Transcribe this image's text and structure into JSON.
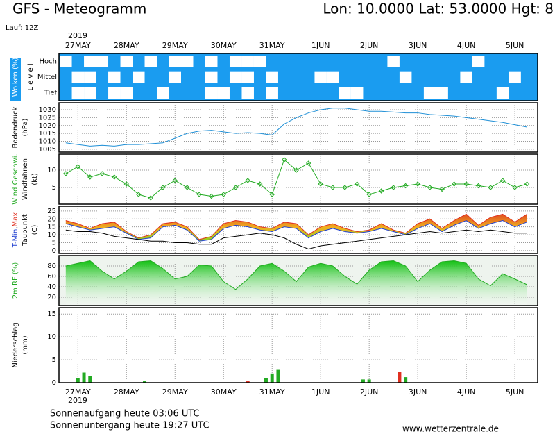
{
  "header": {
    "title": "GFS - Meteogramm",
    "location": "Lon: 10.0000 Lat: 53.0000 Hgt: 8",
    "run": "Lauf: 12Z",
    "year": "2019"
  },
  "time": {
    "xlim": [
      -0.39,
      9.47
    ],
    "xticks": [
      {
        "value": 0,
        "label": "27MAY"
      },
      {
        "value": 1,
        "label": "28MAY"
      },
      {
        "value": 2,
        "label": "29MAY"
      },
      {
        "value": 3,
        "label": "30MAY"
      },
      {
        "value": 4,
        "label": "31MAY"
      },
      {
        "value": 5,
        "label": "1JUN"
      },
      {
        "value": 6,
        "label": "2JUN"
      },
      {
        "value": 7,
        "label": "3JUN"
      },
      {
        "value": 8,
        "label": "4JUN"
      },
      {
        "value": 9,
        "label": "5JUN"
      }
    ],
    "x": [
      -0.25,
      0,
      0.25,
      0.5,
      0.75,
      1,
      1.25,
      1.5,
      1.75,
      2,
      2.25,
      2.5,
      2.75,
      3,
      3.25,
      3.5,
      3.75,
      4,
      4.25,
      4.5,
      4.75,
      5,
      5.25,
      5.5,
      5.75,
      6,
      6.25,
      6.5,
      6.75,
      7,
      7.25,
      7.5,
      7.75,
      8,
      8.25,
      8.5,
      8.75,
      9,
      9.25
    ]
  },
  "chart_data": [
    {
      "type": "heatmap",
      "axis_label": [
        "Wolken (%)",
        "L e v e l"
      ],
      "levels": [
        "Hoch",
        "Mittel",
        "Tief"
      ],
      "color": "#1a9cf0",
      "cloud_color": "#ffffff",
      "values": [
        [
          100,
          0,
          100,
          100,
          0,
          100,
          0,
          100,
          0,
          100,
          100,
          0,
          100,
          0,
          100,
          100,
          100,
          0,
          0,
          0,
          0,
          0,
          0,
          0,
          0,
          0,
          0,
          100,
          0,
          0,
          0,
          0,
          0,
          0,
          100,
          0,
          0,
          0,
          0
        ],
        [
          0,
          100,
          100,
          0,
          100,
          0,
          100,
          0,
          0,
          100,
          0,
          0,
          100,
          0,
          100,
          100,
          0,
          100,
          0,
          0,
          0,
          100,
          100,
          0,
          0,
          0,
          0,
          0,
          100,
          0,
          0,
          0,
          0,
          100,
          0,
          0,
          0,
          100,
          0
        ],
        [
          0,
          100,
          100,
          0,
          100,
          100,
          0,
          0,
          100,
          0,
          0,
          0,
          100,
          100,
          0,
          100,
          0,
          100,
          0,
          0,
          0,
          0,
          0,
          100,
          100,
          0,
          0,
          0,
          0,
          0,
          100,
          100,
          0,
          0,
          0,
          0,
          100,
          0,
          0
        ]
      ]
    },
    {
      "type": "line",
      "axis_label": [
        "Bodendruck",
        "(hPa)"
      ],
      "label_colors": [
        "#000000",
        "#000000"
      ],
      "ylim": [
        1003.2,
        1034.4
      ],
      "yticks": [
        1005,
        1010,
        1015,
        1020,
        1025,
        1030
      ],
      "grid": true,
      "series": [
        {
          "color": "#1e8fd6",
          "values": [
            1009,
            1008,
            1007,
            1007.5,
            1007,
            1008,
            1008,
            1008.5,
            1009,
            1012,
            1015,
            1016.5,
            1017,
            1016,
            1015,
            1015.5,
            1015,
            1014,
            1021,
            1025,
            1028,
            1030,
            1031,
            1031,
            1030,
            1029,
            1029,
            1028.5,
            1028,
            1028,
            1027,
            1026.5,
            1026,
            1025,
            1024,
            1023,
            1022,
            1020.5,
            1019
          ]
        }
      ]
    },
    {
      "type": "line",
      "axis_label": [
        "Wind Geschwi.",
        "Windfahnen",
        "(kt)"
      ],
      "label_colors": [
        "#22aa22",
        "#000000",
        "#000000"
      ],
      "ylim": [
        0.2,
        14.6
      ],
      "yticks": [
        5,
        10
      ],
      "grid": true,
      "marker": "diamond",
      "series": [
        {
          "color": "#22aa22",
          "values": [
            9,
            11,
            8,
            9,
            8,
            6,
            3,
            2,
            5,
            7,
            5,
            3,
            2.5,
            3,
            5,
            7,
            6,
            3,
            13,
            10,
            12,
            6,
            5,
            5,
            6,
            3,
            4,
            5,
            5.5,
            6,
            5,
            4.5,
            6,
            6,
            5.5,
            5,
            7,
            5,
            6
          ]
        }
      ]
    },
    {
      "type": "line",
      "axis_label": [
        "(C)"
      ],
      "label_separator": ",",
      "ylim": [
        -1.8,
        28
      ],
      "yticks": [
        0,
        5,
        10,
        15,
        20,
        25
      ],
      "grid": true,
      "fill": "#f0a020",
      "series": [
        {
          "name": "T-Min",
          "color": "#2040d0",
          "values": [
            17,
            15,
            13,
            14,
            15,
            11,
            7,
            8,
            15,
            16,
            13,
            6,
            7,
            14,
            16,
            15,
            13,
            12,
            15,
            14,
            8,
            12,
            14,
            12,
            11,
            12,
            14,
            12,
            10,
            14,
            17,
            12,
            16,
            19,
            14,
            17,
            19,
            15,
            18
          ]
        },
        {
          "name": "Max",
          "color": "#e03020",
          "values": [
            19,
            17,
            14,
            17,
            18,
            12,
            8,
            10,
            17,
            18,
            15,
            7,
            9,
            17,
            19,
            18,
            15,
            14,
            18,
            17,
            10,
            15,
            17,
            14,
            12,
            13,
            17,
            13,
            11,
            17,
            20,
            14,
            19,
            23,
            16,
            21,
            23,
            18,
            23
          ]
        },
        {
          "name": "Taupunkt",
          "color": "#000000",
          "values": [
            13,
            12,
            12,
            11,
            9,
            8,
            7,
            6,
            6,
            5,
            5,
            4,
            4,
            8,
            9,
            10,
            11,
            10,
            8,
            4,
            1,
            3,
            4,
            5,
            6,
            7,
            8,
            9,
            10,
            11,
            12,
            11,
            12,
            13,
            12,
            13,
            12,
            11,
            11
          ]
        }
      ]
    },
    {
      "type": "area",
      "axis_label": [
        "2m RF (%)"
      ],
      "label_colors": [
        "#22aa22"
      ],
      "ylim": [
        4,
        100
      ],
      "yticks": [
        20,
        40,
        60,
        80
      ],
      "grid": true,
      "series": [
        {
          "color": "#22aa22",
          "values": [
            80,
            85,
            90,
            70,
            55,
            70,
            88,
            90,
            75,
            55,
            60,
            82,
            80,
            50,
            35,
            55,
            80,
            85,
            70,
            50,
            78,
            85,
            80,
            60,
            45,
            72,
            88,
            90,
            80,
            50,
            72,
            88,
            90,
            85,
            55,
            42,
            65,
            55,
            44
          ]
        }
      ]
    },
    {
      "type": "bar",
      "axis_label": [
        "Niederschlag",
        "(mm)"
      ],
      "label_colors": [
        "#000000",
        "#000000"
      ],
      "ylim": [
        0,
        16.4
      ],
      "yticks": [
        0,
        5,
        10,
        15
      ],
      "grid": true,
      "x": [
        0,
        0.125,
        0.25,
        1.375,
        3.5,
        3.875,
        4,
        4.125,
        5.875,
        6,
        6.625,
        6.75
      ],
      "values": [
        1,
        2.2,
        1.5,
        0.3,
        0.3,
        1,
        2,
        2.8,
        0.7,
        0.7,
        2.3,
        1.2
      ],
      "colors": [
        "#22aa22",
        "#22aa22",
        "#22aa22",
        "#22aa22",
        "#e03020",
        "#22aa22",
        "#22aa22",
        "#22aa22",
        "#22aa22",
        "#22aa22",
        "#e03020",
        "#22aa22"
      ]
    }
  ],
  "footer": {
    "sunrise": "Sonnenaufgang heute 03:06 UTC",
    "sunset": "Sonnenuntergang heute 19:27 UTC",
    "source": "www.wetterzentrale.de"
  }
}
